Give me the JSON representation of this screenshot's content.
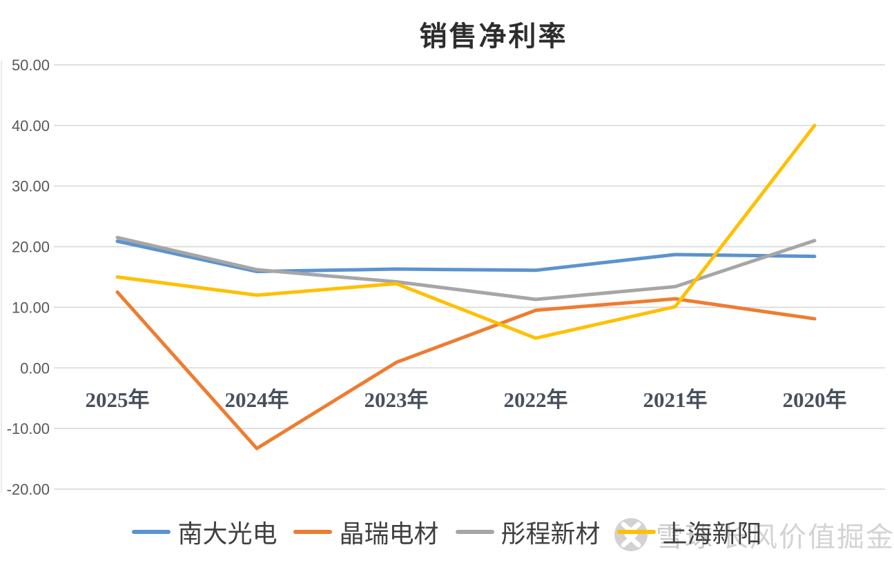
{
  "title": "销售净利率",
  "watermark": {
    "brand": "雪球",
    "suffix": "长风价值掘金"
  },
  "chart_data": {
    "type": "line",
    "title": "销售净利率",
    "categories": [
      "2025年",
      "2024年",
      "2023年",
      "2022年",
      "2021年",
      "2020年"
    ],
    "series": [
      {
        "name": "南大光电",
        "color": "#5B93CE",
        "values": [
          20.9,
          15.9,
          16.3,
          16.1,
          18.7,
          18.4
        ]
      },
      {
        "name": "晶瑞电材",
        "color": "#ED7D31",
        "values": [
          12.5,
          -13.3,
          0.9,
          9.5,
          11.4,
          8.1
        ]
      },
      {
        "name": "彤程新材",
        "color": "#A6A6A6",
        "values": [
          21.5,
          16.2,
          14.2,
          11.3,
          13.4,
          21.0
        ]
      },
      {
        "name": "上海新阳",
        "color": "#FFC000",
        "values": [
          15.0,
          12.0,
          13.9,
          4.9,
          10.1,
          40.0
        ]
      }
    ],
    "ylim": [
      -20,
      50
    ],
    "ytick_step": 10,
    "yticks": [
      "50.00",
      "40.00",
      "30.00",
      "20.00",
      "10.00",
      "0.00",
      "-10.00",
      "-20.00"
    ],
    "grid": true,
    "legend_position": "bottom",
    "colors": {
      "gridline": "#D9D9D9",
      "y_label": "#595959",
      "x_label": "#47505C",
      "title": "#2D2D2D",
      "legend_text": "#3F3F3F",
      "watermark": "#C3C3C3"
    }
  }
}
